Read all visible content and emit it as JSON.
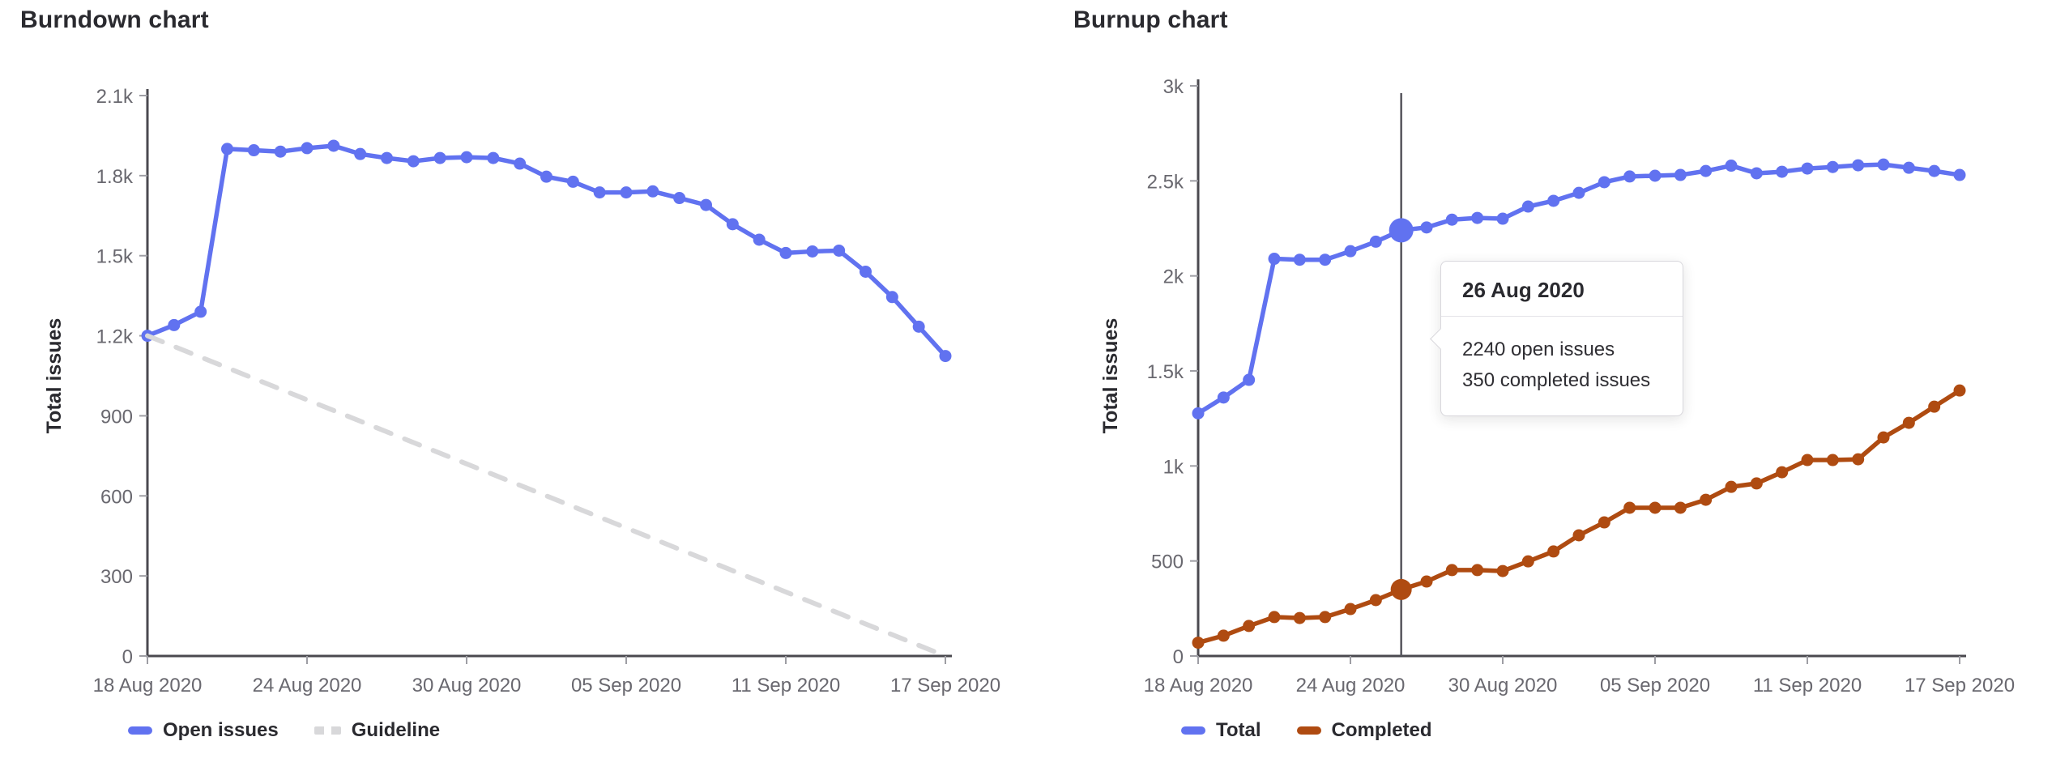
{
  "colors": {
    "axis": "#4a494f",
    "tick": "#9e9ea4",
    "tick_text": "#69686f",
    "title_text": "#2a2a2f",
    "crosshair": "#56555c",
    "blue": "#6172f0",
    "orange": "#af4b11",
    "guideline_gray": "#d8d8da"
  },
  "chart_data": [
    {
      "type": "line",
      "title": "Burndown chart",
      "ylabel": "Total issues",
      "ylim": [
        0,
        2100
      ],
      "x_range_days": 30,
      "grid": false,
      "legend_position": "bottom-left",
      "y_ticks": [
        0,
        300,
        600,
        900,
        1200,
        1500,
        1800,
        2100
      ],
      "y_tick_labels": [
        "0",
        "300",
        "600",
        "900",
        "1.2k",
        "1.5k",
        "1.8k",
        "2.1k"
      ],
      "x_tick_days": [
        0,
        6,
        12,
        18,
        24,
        30
      ],
      "x_tick_labels": [
        "18 Aug 2020",
        "24 Aug 2020",
        "30 Aug 2020",
        "05 Sep 2020",
        "11 Sep 2020",
        "17 Sep 2020"
      ],
      "series": [
        {
          "name": "Open issues",
          "color": "#6172f0",
          "style": "solid",
          "markers": true,
          "values": [
            1200,
            1240,
            1290,
            1900,
            1895,
            1890,
            1903,
            1912,
            1881,
            1866,
            1854,
            1866,
            1869,
            1866,
            1845,
            1796,
            1777,
            1737,
            1737,
            1741,
            1716,
            1690,
            1618,
            1560,
            1510,
            1516,
            1519,
            1440,
            1345,
            1234,
            1124
          ]
        },
        {
          "name": "Guideline",
          "color": "#d8d8da",
          "style": "dashed",
          "markers": false,
          "x": [
            0,
            30
          ],
          "values": [
            1200,
            0
          ]
        }
      ]
    },
    {
      "type": "line",
      "title": "Burnup chart",
      "ylabel": "Total issues",
      "ylim": [
        0,
        3000
      ],
      "x_range_days": 30,
      "grid": false,
      "legend_position": "bottom-left",
      "y_ticks": [
        0,
        500,
        1000,
        1500,
        2000,
        2500,
        3000
      ],
      "y_tick_labels": [
        "0",
        "500",
        "1k",
        "1.5k",
        "2k",
        "2.5k",
        "3k"
      ],
      "x_tick_days": [
        0,
        6,
        12,
        18,
        24,
        30
      ],
      "x_tick_labels": [
        "18 Aug 2020",
        "24 Aug 2020",
        "30 Aug 2020",
        "05 Sep 2020",
        "11 Sep 2020",
        "17 Sep 2020"
      ],
      "highlight": {
        "day": 8,
        "date": "26 Aug 2020"
      },
      "series": [
        {
          "name": "Total",
          "color": "#6172f0",
          "style": "solid",
          "markers": true,
          "highlight_radius": 15,
          "values": [
            1277,
            1360,
            1453,
            2090,
            2085,
            2085,
            2130,
            2180,
            2240,
            2255,
            2296,
            2305,
            2301,
            2365,
            2395,
            2437,
            2493,
            2523,
            2527,
            2531,
            2552,
            2580,
            2540,
            2548,
            2565,
            2573,
            2582,
            2586,
            2569,
            2552,
            2531
          ]
        },
        {
          "name": "Completed",
          "color": "#af4b11",
          "style": "solid",
          "markers": true,
          "highlight_radius": 13,
          "values": [
            70,
            107,
            158,
            205,
            200,
            205,
            247,
            294,
            350,
            392,
            452,
            452,
            447,
            498,
            550,
            635,
            703,
            780,
            780,
            780,
            822,
            890,
            908,
            967,
            1031,
            1031,
            1035,
            1150,
            1227,
            1312,
            1397
          ]
        }
      ]
    }
  ],
  "tooltip": {
    "date": "26 Aug 2020",
    "lines": [
      "2240 open issues",
      "350 completed issues"
    ]
  }
}
